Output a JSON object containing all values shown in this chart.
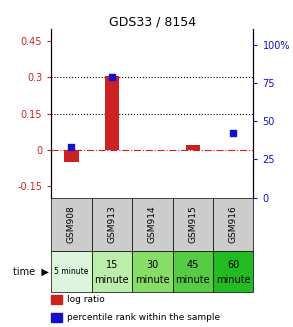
{
  "title": "GDS33 / 8154",
  "samples": [
    "GSM908",
    "GSM913",
    "GSM914",
    "GSM915",
    "GSM916"
  ],
  "time_labels_top": [
    "5 minute",
    "15",
    "30",
    "45",
    "60"
  ],
  "time_labels_bot": [
    "",
    "minute",
    "minute",
    "minute",
    "minute"
  ],
  "log_ratio": [
    -0.05,
    0.305,
    0.0,
    0.018,
    0.0
  ],
  "percentile_rank": [
    33,
    79,
    -1,
    -1,
    42
  ],
  "ylim_left": [
    -0.2,
    0.5
  ],
  "ylim_right": [
    0,
    110.0
  ],
  "yticks_left": [
    -0.15,
    0.0,
    0.15,
    0.3,
    0.45
  ],
  "ytick_labels_left": [
    "-0.15",
    "0",
    "0.15",
    "0.3",
    "0.45"
  ],
  "yticks_right": [
    0,
    25,
    50,
    75,
    100
  ],
  "ytick_labels_right": [
    "0",
    "25",
    "50",
    "75",
    "100%"
  ],
  "hlines": [
    0.15,
    0.3
  ],
  "bar_color": "#cc2222",
  "dot_color": "#1111cc",
  "zero_line_color": "#cc2222",
  "cell_colors_gsm": [
    "#cccccc",
    "#cccccc",
    "#cccccc",
    "#cccccc",
    "#cccccc"
  ],
  "cell_colors_time": [
    "#ddf5dd",
    "#bbeeaa",
    "#88dd66",
    "#55cc44",
    "#22bb22"
  ],
  "bar_width": 0.35,
  "legend_items": [
    "log ratio",
    "percentile rank within the sample"
  ],
  "legend_colors": [
    "#cc2222",
    "#1111cc"
  ]
}
